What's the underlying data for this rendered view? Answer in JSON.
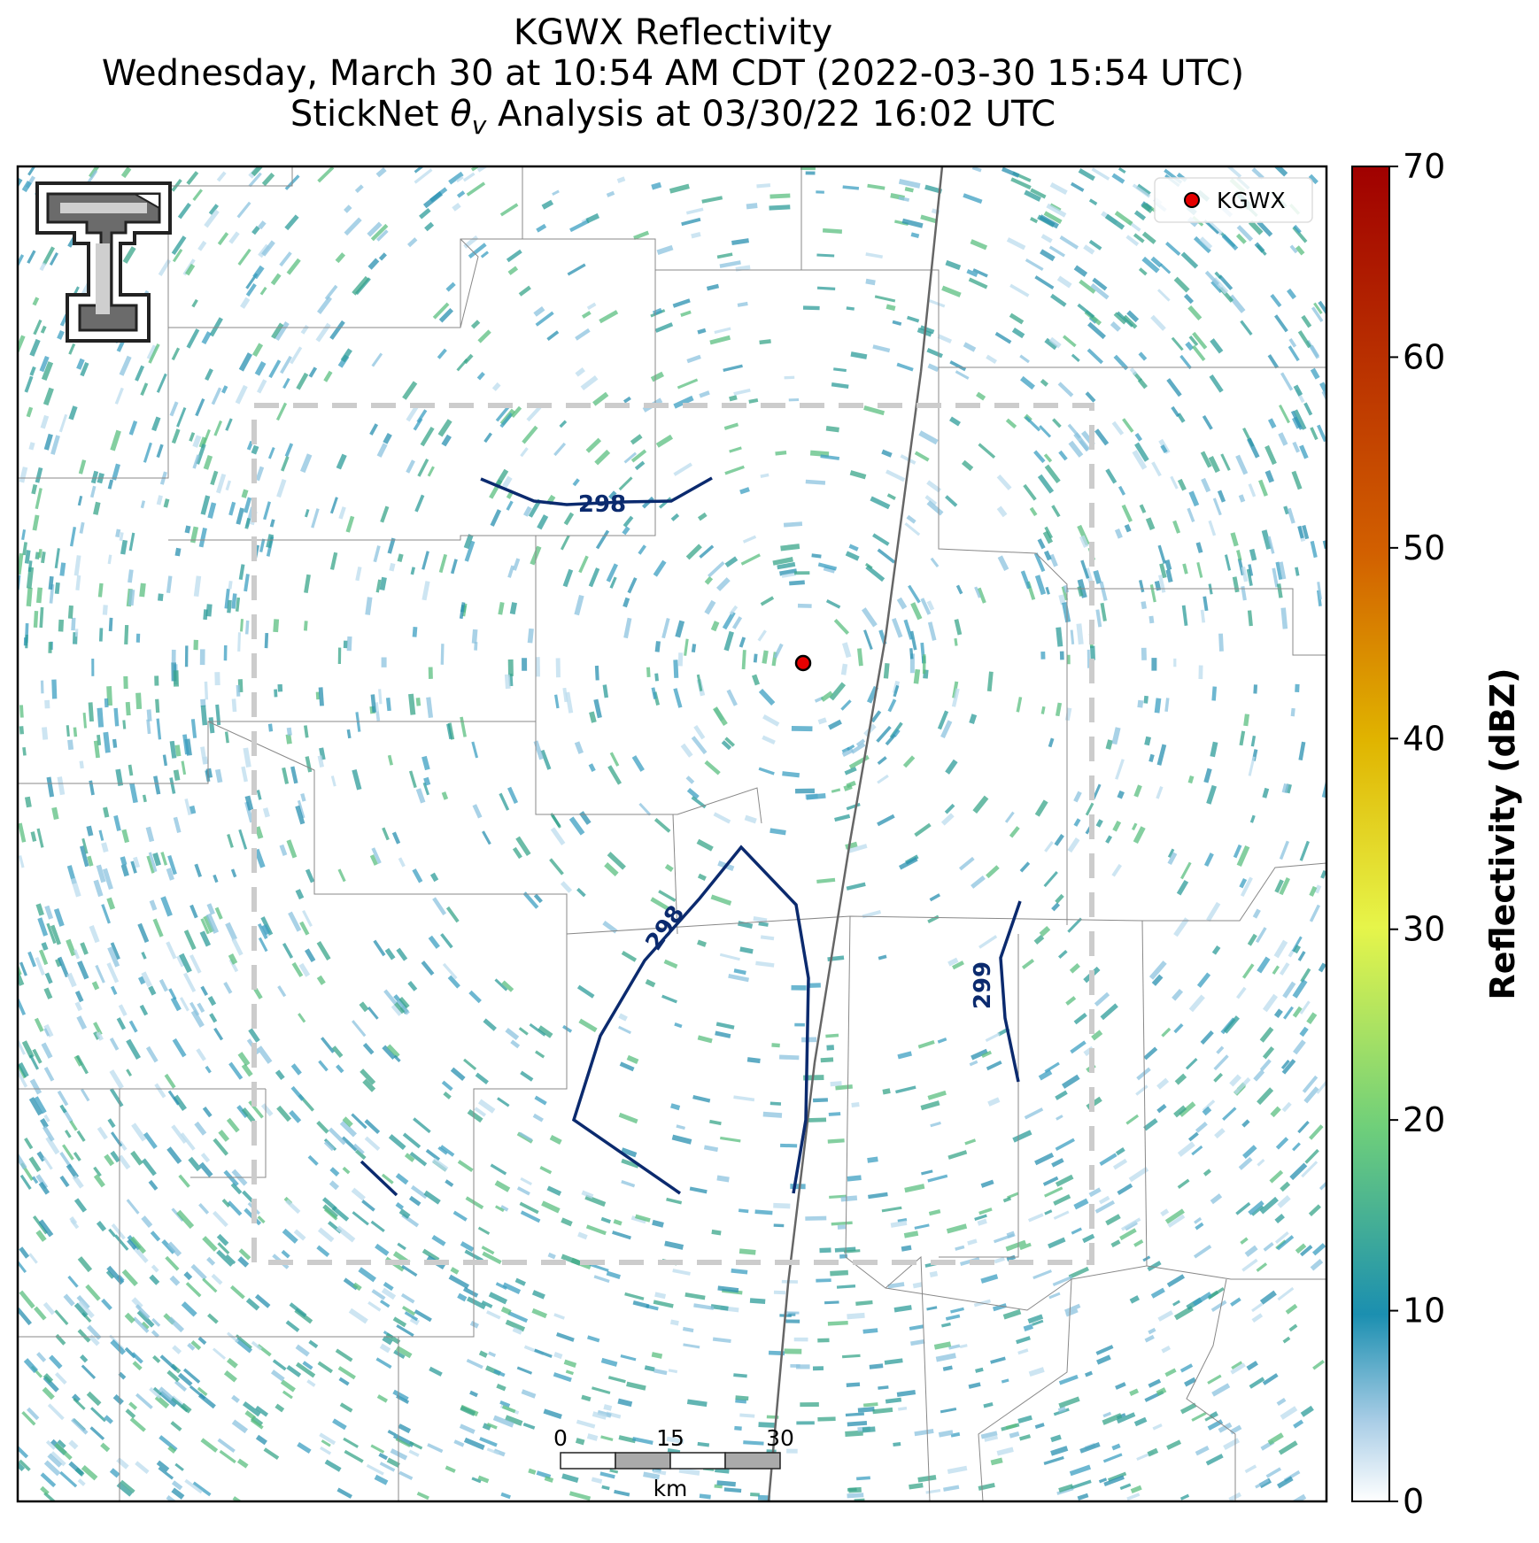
{
  "title": {
    "line1": "KGWX Reflectivity",
    "line2": "Wednesday, March 30 at 10:54 AM CDT (2022-03-30 15:54 UTC)",
    "line3_prefix": "StickNet ",
    "line3_theta": "θ",
    "line3_sub": "v",
    "line3_suffix": " Analysis at 03/30/22 16:02 UTC"
  },
  "legend": {
    "marker_label": "KGWX",
    "marker_color": "#e60000"
  },
  "colorbar": {
    "label": "Reflectivity (dBZ)",
    "ticks": [
      0,
      10,
      20,
      30,
      40,
      50,
      60,
      70
    ],
    "range": [
      0,
      70
    ],
    "colors": [
      "#ffffff",
      "#1b8fb0",
      "#6fcf7a",
      "#e6f54a",
      "#e0b400",
      "#d26000",
      "#a00000"
    ]
  },
  "scale_bar": {
    "labels": [
      "0",
      "15",
      "30"
    ],
    "unit": "km"
  },
  "contours": {
    "labels": [
      "298",
      "298",
      "299"
    ],
    "color": "#0b2a6e"
  },
  "colors": {
    "radar_echo": "#2a90b0",
    "analysis_box": "#cccccc",
    "county_lines": "#888888",
    "road": "#666666"
  },
  "logo": {
    "name": "texas-tech-logo"
  }
}
